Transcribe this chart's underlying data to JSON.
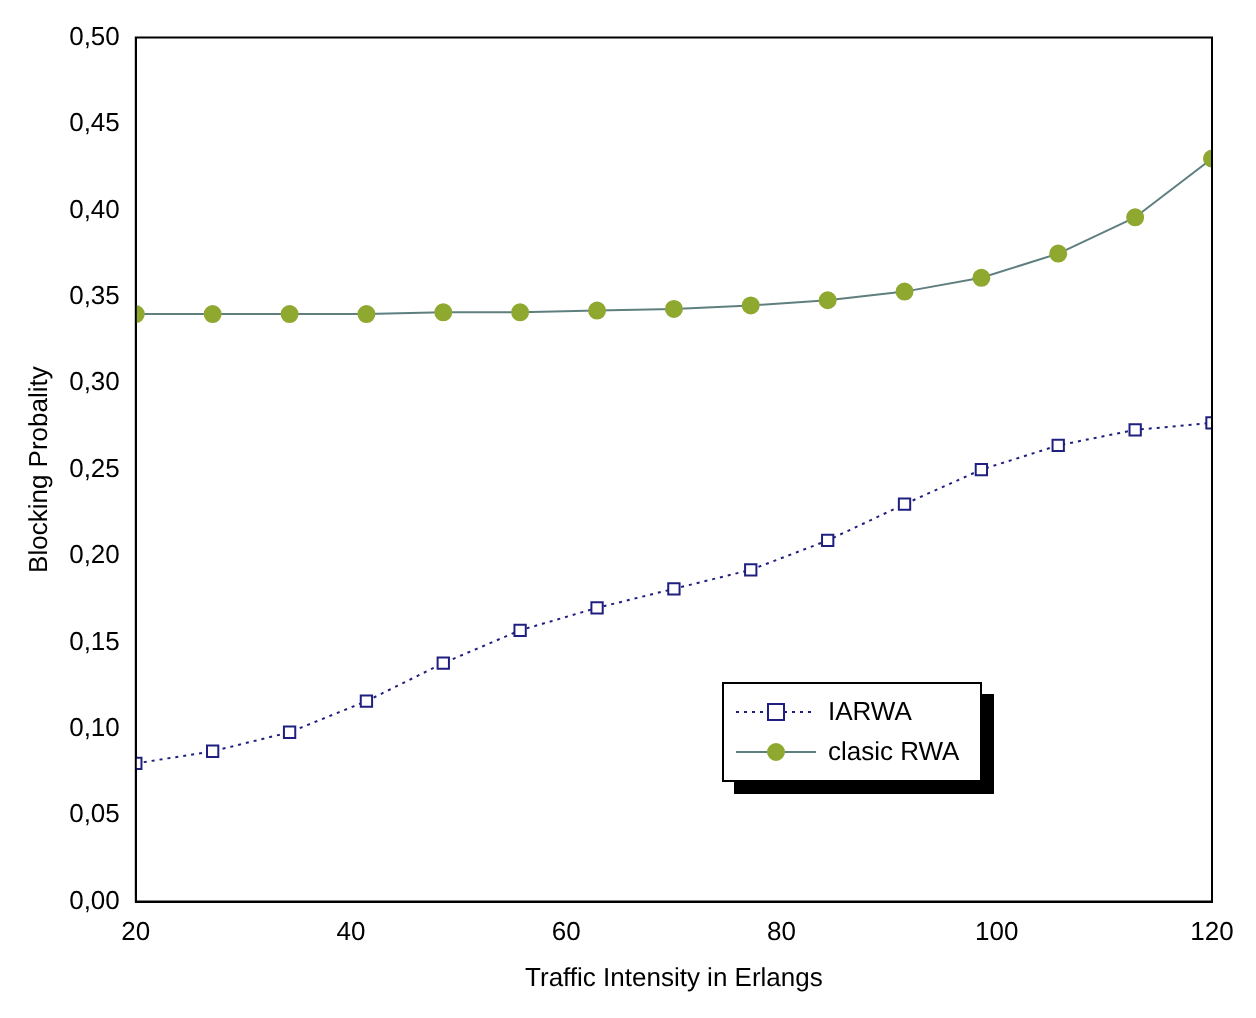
{
  "chart_data": {
    "type": "line",
    "xlabel": "Traffic Intensity in Erlangs",
    "ylabel": "Blocking Probality",
    "x": [
      20,
      27.14,
      34.29,
      41.43,
      48.57,
      55.71,
      62.86,
      70,
      77.14,
      84.29,
      91.43,
      98.57,
      105.71,
      112.86,
      120
    ],
    "series": [
      {
        "name": "IARWA",
        "color": "#1f1f80",
        "marker": "square",
        "line_style": "dotted",
        "values": [
          0.08,
          0.087,
          0.098,
          0.116,
          0.138,
          0.157,
          0.17,
          0.181,
          0.192,
          0.209,
          0.23,
          0.25,
          0.264,
          0.273,
          0.277
        ]
      },
      {
        "name": "clasic RWA",
        "color": "#8fa830",
        "marker": "circle",
        "line_style": "solid",
        "values": [
          0.34,
          0.34,
          0.34,
          0.34,
          0.341,
          0.341,
          0.342,
          0.343,
          0.345,
          0.348,
          0.353,
          0.361,
          0.375,
          0.396,
          0.43
        ]
      }
    ],
    "xlim": [
      20,
      120
    ],
    "xticks": [
      20,
      40,
      60,
      80,
      100,
      120
    ],
    "ylim": [
      0,
      0.5
    ],
    "yticks": [
      {
        "value": 0,
        "label": "0,00"
      },
      {
        "value": 0.05,
        "label": "0,05"
      },
      {
        "value": 0.1,
        "label": "0,10"
      },
      {
        "value": 0.15,
        "label": "0,15"
      },
      {
        "value": 0.2,
        "label": "0,20"
      },
      {
        "value": 0.25,
        "label": "0,25"
      },
      {
        "value": 0.3,
        "label": "0,30"
      },
      {
        "value": 0.35,
        "label": "0,35"
      },
      {
        "value": 0.4,
        "label": "0,40"
      },
      {
        "value": 0.45,
        "label": "0,45"
      },
      {
        "value": 0.5,
        "label": "0,50"
      }
    ],
    "grid": false,
    "legend": "bottom right"
  }
}
